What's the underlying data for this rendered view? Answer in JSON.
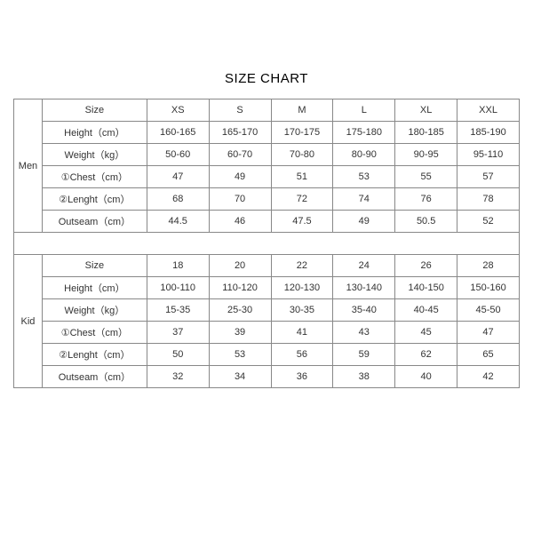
{
  "title": "SIZE CHART",
  "colors": {
    "background": "#ffffff",
    "border": "#888888",
    "text": "#333333",
    "title_text": "#000000"
  },
  "table": {
    "groups": [
      {
        "label": "Men",
        "rows": [
          {
            "name": "Size",
            "values": [
              "XS",
              "S",
              "M",
              "L",
              "XL",
              "XXL"
            ]
          },
          {
            "name": "Height（cm）",
            "values": [
              "160-165",
              "165-170",
              "170-175",
              "175-180",
              "180-185",
              "185-190"
            ]
          },
          {
            "name": "Weight（kg）",
            "values": [
              "50-60",
              "60-70",
              "70-80",
              "80-90",
              "90-95",
              "95-110"
            ]
          },
          {
            "name": "①Chest（cm）",
            "values": [
              "47",
              "49",
              "51",
              "53",
              "55",
              "57"
            ]
          },
          {
            "name": "②Lenght（cm）",
            "values": [
              "68",
              "70",
              "72",
              "74",
              "76",
              "78"
            ]
          },
          {
            "name": "Outseam（cm）",
            "values": [
              "44.5",
              "46",
              "47.5",
              "49",
              "50.5",
              "52"
            ]
          }
        ]
      },
      {
        "label": "Kid",
        "rows": [
          {
            "name": "Size",
            "values": [
              "18",
              "20",
              "22",
              "24",
              "26",
              "28"
            ]
          },
          {
            "name": "Height（cm）",
            "values": [
              "100-110",
              "110-120",
              "120-130",
              "130-140",
              "140-150",
              "150-160"
            ]
          },
          {
            "name": "Weight（kg）",
            "values": [
              "15-35",
              "25-30",
              "30-35",
              "35-40",
              "40-45",
              "45-50"
            ]
          },
          {
            "name": "①Chest（cm）",
            "values": [
              "37",
              "39",
              "41",
              "43",
              "45",
              "47"
            ]
          },
          {
            "name": "②Lenght（cm）",
            "values": [
              "50",
              "53",
              "56",
              "59",
              "62",
              "65"
            ]
          },
          {
            "name": "Outseam（cm）",
            "values": [
              "32",
              "34",
              "36",
              "38",
              "40",
              "42"
            ]
          }
        ]
      }
    ]
  }
}
